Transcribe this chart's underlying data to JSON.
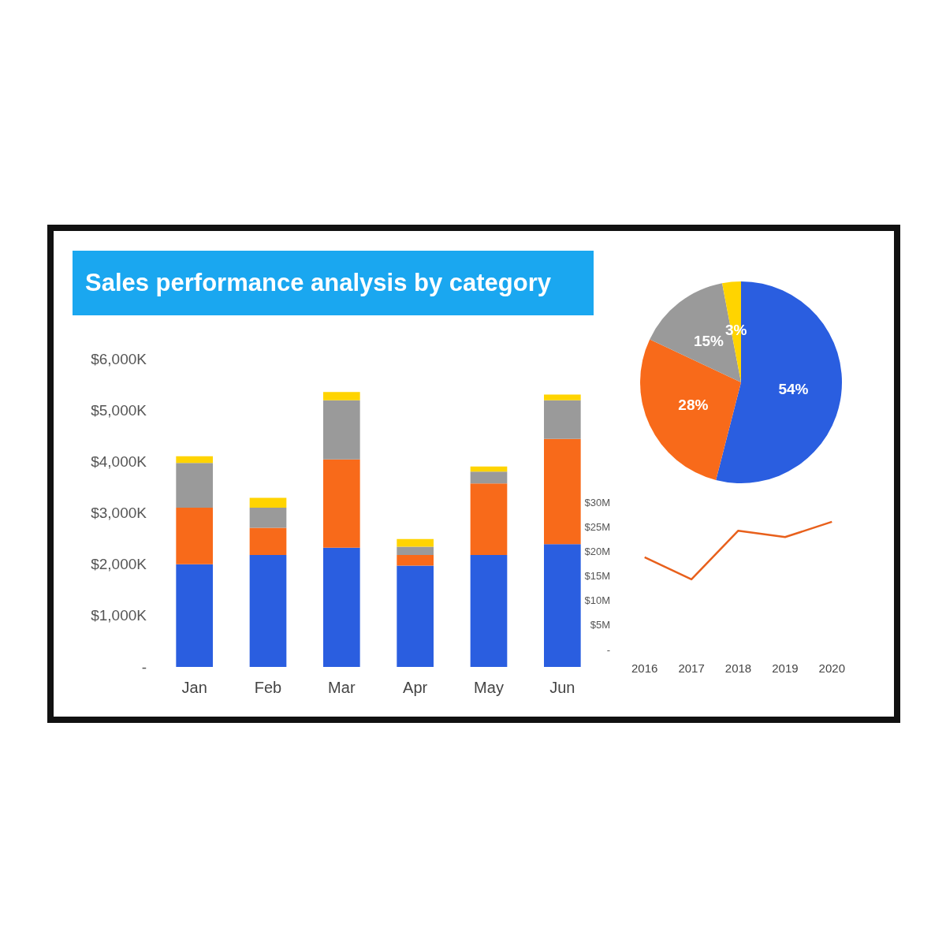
{
  "chart_data": [
    {
      "type": "bar",
      "title": "Sales performance analysis by category",
      "stacked": true,
      "categories": [
        "Jan",
        "Feb",
        "Mar",
        "Apr",
        "May",
        "Jun"
      ],
      "series": [
        {
          "color": "#2a5ee0",
          "values": [
            2000,
            2180,
            2320,
            1970,
            2180,
            2390
          ]
        },
        {
          "color": "#f86a1a",
          "values": [
            1100,
            530,
            1720,
            210,
            1390,
            2050
          ]
        },
        {
          "color": "#9a9a9a",
          "values": [
            870,
            390,
            1150,
            160,
            230,
            750
          ]
        },
        {
          "color": "#ffd400",
          "values": [
            130,
            190,
            160,
            150,
            100,
            110
          ]
        }
      ],
      "ylim": [
        0,
        6000
      ],
      "yticks": [
        {
          "value": 0,
          "label": "-"
        },
        {
          "value": 1000,
          "label": "$1,000K"
        },
        {
          "value": 2000,
          "label": "$2,000K"
        },
        {
          "value": 3000,
          "label": "$3,000K"
        },
        {
          "value": 4000,
          "label": "$4,000K"
        },
        {
          "value": 5000,
          "label": "$5,000K"
        },
        {
          "value": 6000,
          "label": "$6,000K"
        }
      ]
    },
    {
      "type": "pie",
      "categories": [
        null,
        null,
        null,
        null
      ],
      "values": [
        54,
        28,
        15,
        3
      ],
      "colors": [
        "#2a5ee0",
        "#f86a1a",
        "#9a9a9a",
        "#ffd400"
      ],
      "value_labels": [
        "54%",
        "28%",
        "15%",
        "3%"
      ]
    },
    {
      "type": "line",
      "categories": [
        "2016",
        "2017",
        "2018",
        "2019",
        "2020"
      ],
      "series": [
        {
          "color": "#e8601c",
          "values": [
            18.8,
            14.3,
            24.2,
            22.9,
            26.0
          ]
        }
      ],
      "marker": "none",
      "line_style": "solid",
      "ylim": [
        0,
        30
      ],
      "yticks": [
        {
          "value": 0,
          "label": "-"
        },
        {
          "value": 5,
          "label": "$5M"
        },
        {
          "value": 10,
          "label": "$10M"
        },
        {
          "value": 15,
          "label": "$15M"
        },
        {
          "value": 20,
          "label": "$20M"
        },
        {
          "value": 25,
          "label": "$25M"
        },
        {
          "value": 30,
          "label": "$30M"
        }
      ]
    }
  ]
}
